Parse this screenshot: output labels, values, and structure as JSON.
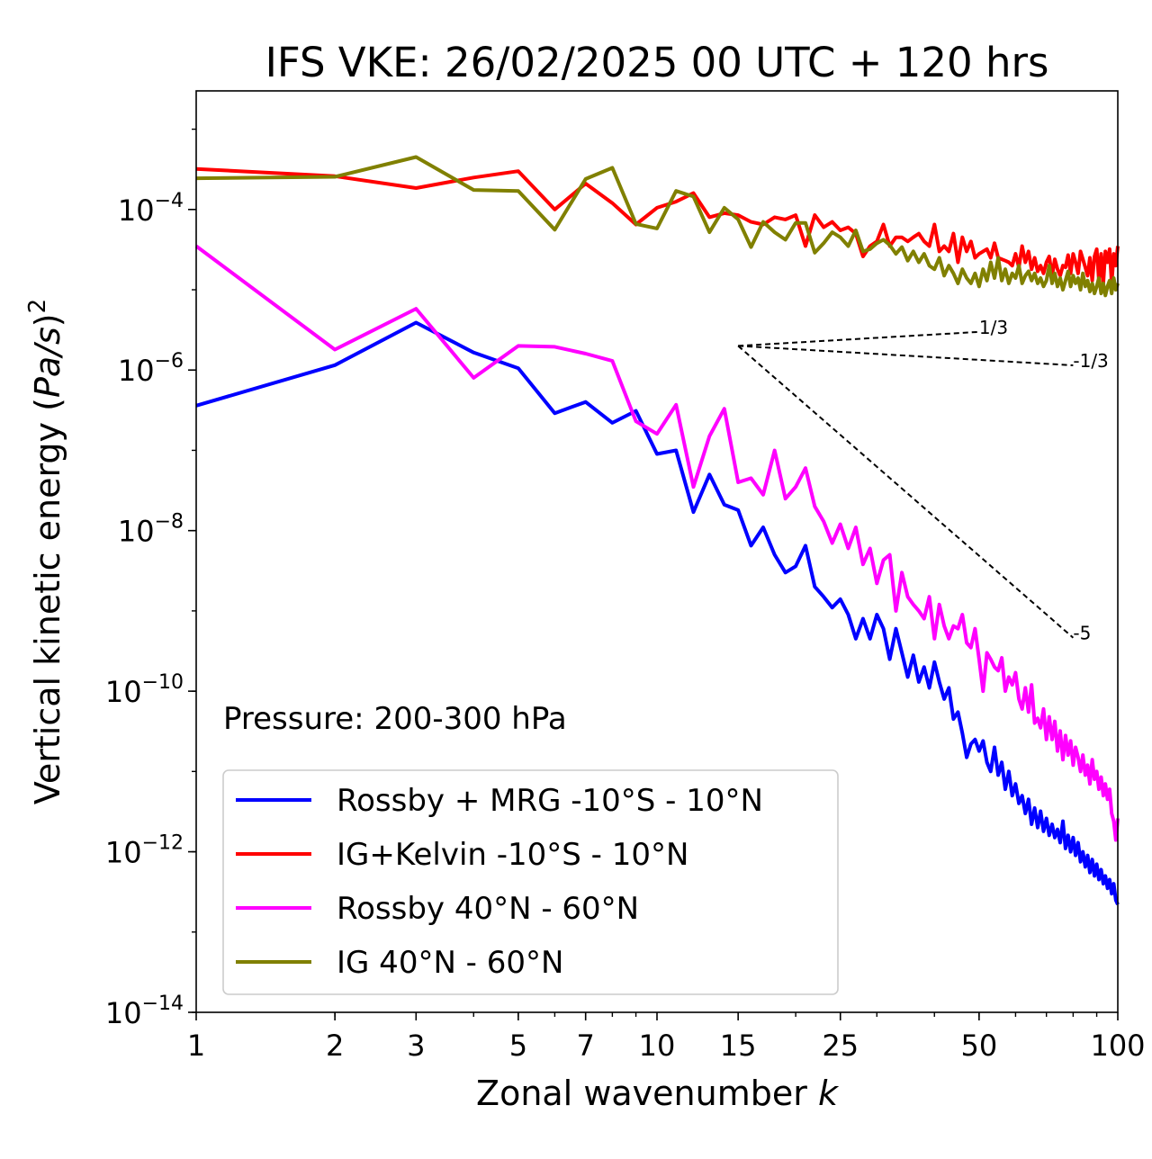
{
  "chart_data": {
    "type": "line",
    "title": "IFS VKE: 26/02/2025 00 UTC + 120 hrs",
    "xlabel_main": "Zonal wavenumber ",
    "xlabel_italic": "k",
    "ylabel_main": "Vertical kinetic energy (",
    "ylabel_italic": "Pa/s",
    "ylabel_close": ")",
    "ylabel_sup": "2",
    "x_scale": "log",
    "y_scale": "log",
    "xlim": [
      1,
      100
    ],
    "ylim": [
      1e-14,
      0.003
    ],
    "x_ticks": [
      1,
      2,
      3,
      5,
      7,
      10,
      15,
      25,
      50,
      100
    ],
    "x_tick_labels": [
      "1",
      "2",
      "3",
      "5",
      "7",
      "10",
      "15",
      "25",
      "50",
      "100"
    ],
    "y_ticks": [
      1e-14,
      1e-12,
      1e-10,
      1e-08,
      1e-06,
      0.0001
    ],
    "y_tick_labels": [
      {
        "base": "10",
        "exp": "−14"
      },
      {
        "base": "10",
        "exp": "−12"
      },
      {
        "base": "10",
        "exp": "−10"
      },
      {
        "base": "10",
        "exp": "−8"
      },
      {
        "base": "10",
        "exp": "−6"
      },
      {
        "base": "10",
        "exp": "−4"
      }
    ],
    "grid": false,
    "legend_position": "lower-left",
    "annotation": "Pressure: 200-300 hPa",
    "series": [
      {
        "name": "Rossby + MRG -10°S - 10°N",
        "color": "#0000ff",
        "x": [
          1,
          2,
          3,
          4,
          5,
          6,
          7,
          8,
          9,
          10,
          11,
          12,
          13,
          14,
          15,
          16,
          17,
          18,
          19,
          20,
          21,
          22,
          23,
          24,
          25,
          26,
          27,
          28,
          29,
          30,
          31,
          32,
          33,
          34,
          35,
          36,
          37,
          38,
          39,
          40,
          41,
          42,
          43,
          44,
          45,
          46,
          47,
          48,
          49,
          50,
          51,
          52,
          53,
          54,
          55,
          56,
          57,
          58,
          59,
          60,
          61,
          62,
          63,
          64,
          65,
          66,
          67,
          68,
          69,
          70,
          71,
          72,
          73,
          74,
          75,
          76,
          77,
          78,
          79,
          80,
          81,
          82,
          83,
          84,
          85,
          86,
          87,
          88,
          89,
          90,
          91,
          92,
          93,
          94,
          95,
          96,
          97,
          98,
          99,
          100
        ],
        "y": [
          3.6e-07,
          1.15e-06,
          3.9e-06,
          1.65e-06,
          1.05e-06,
          2.9e-07,
          4e-07,
          2.2e-07,
          3.1e-07,
          9e-08,
          1e-07,
          1.7e-08,
          5e-08,
          2.1e-08,
          1.8e-08,
          6.5e-09,
          1.1e-08,
          5e-09,
          3e-09,
          3.6e-09,
          6.5e-09,
          2e-09,
          1.5e-09,
          1.1e-09,
          1.4e-09,
          9e-10,
          4.5e-10,
          8e-10,
          4.5e-10,
          9e-10,
          6e-10,
          2.5e-10,
          6e-10,
          3e-10,
          1.5e-10,
          2.8e-10,
          1.3e-10,
          2e-10,
          1.1e-10,
          2.3e-10,
          1.3e-10,
          8e-11,
          1.1e-10,
          4.5e-11,
          5.5e-11,
          3e-11,
          1.5e-11,
          2.2e-11,
          2.5e-11,
          1.8e-11,
          2.4e-11,
          1.3e-11,
          1e-11,
          2e-11,
          9e-12,
          1.3e-11,
          6e-12,
          1e-11,
          5e-12,
          7e-12,
          4e-12,
          5e-12,
          3e-12,
          4.5e-12,
          2.2e-12,
          3.5e-12,
          2e-12,
          3.2e-12,
          1.8e-12,
          2.6e-12,
          1.6e-12,
          2.2e-12,
          1.5e-12,
          1.9e-12,
          1.3e-12,
          2.4e-12,
          1.1e-12,
          1.6e-12,
          1e-12,
          1.5e-12,
          9e-13,
          1.3e-12,
          7.5e-13,
          1e-12,
          6.5e-13,
          9e-13,
          5.5e-13,
          8e-13,
          5e-13,
          7e-13,
          4.5e-13,
          6e-13,
          4e-13,
          5e-13,
          3.5e-13,
          4.5e-13,
          3e-13,
          4e-13,
          2.5e-13,
          2.2e-13
        ]
      },
      {
        "name": "IG+Kelvin -10°S - 10°N",
        "color": "#ff0000",
        "x": [
          1,
          2,
          3,
          4,
          5,
          6,
          7,
          8,
          9,
          10,
          11,
          12,
          13,
          14,
          15,
          16,
          17,
          18,
          19,
          20,
          21,
          22,
          23,
          24,
          25,
          26,
          27,
          28,
          29,
          30,
          31,
          32,
          33,
          34,
          35,
          36,
          37,
          38,
          39,
          40,
          41,
          42,
          43,
          44,
          45,
          46,
          47,
          48,
          49,
          50,
          51,
          52,
          53,
          54,
          55,
          56,
          57,
          58,
          59,
          60,
          61,
          62,
          63,
          64,
          65,
          66,
          67,
          68,
          69,
          70,
          71,
          72,
          73,
          74,
          75,
          76,
          77,
          78,
          79,
          80,
          81,
          82,
          83,
          84,
          85,
          86,
          87,
          88,
          89,
          90,
          91,
          92,
          93,
          94,
          95,
          96,
          97,
          98,
          99,
          100
        ],
        "y": [
          0.00032,
          0.00026,
          0.000185,
          0.00025,
          0.0003,
          0.0001,
          0.00021,
          0.00012,
          6.5e-05,
          0.000105,
          0.000125,
          0.00016,
          8e-05,
          9e-05,
          8.5e-05,
          7e-05,
          6.5e-05,
          8e-05,
          7.5e-05,
          8.5e-05,
          3.5e-05,
          8.5e-05,
          6e-05,
          7e-05,
          5.5e-05,
          6e-05,
          5e-05,
          2.6e-05,
          3.5e-05,
          4e-05,
          6.5e-05,
          3.5e-05,
          4.5e-05,
          4.5e-05,
          4e-05,
          4.5e-05,
          5e-05,
          4e-05,
          3.5e-05,
          6.5e-05,
          3e-05,
          3.5e-05,
          3e-05,
          5e-05,
          2.2e-05,
          4.5e-05,
          3e-05,
          4e-05,
          2.5e-05,
          2.8e-05,
          3e-05,
          3.2e-05,
          2.5e-05,
          3.8e-05,
          2.5e-05,
          2.4e-05,
          2.3e-05,
          2.2e-05,
          2e-05,
          2.8e-05,
          1.9e-05,
          3.5e-05,
          2.2e-05,
          3e-05,
          1.8e-05,
          2.5e-05,
          1.7e-05,
          2e-05,
          1.6e-05,
          2.2e-05,
          2.6e-05,
          1.5e-05,
          2.4e-05,
          1.8e-05,
          1.5e-05,
          2e-05,
          1.9e-05,
          2.7e-05,
          1.6e-05,
          2.8e-05,
          2.2e-05,
          1.6e-05,
          3e-05,
          2.4e-05,
          1.9e-05,
          1.5e-05,
          2.5e-05,
          1.3e-05,
          2.6e-05,
          3.2e-05,
          1.3e-05,
          2.8e-05,
          1.2e-05,
          3e-05,
          2.2e-05,
          3.2e-05,
          1.2e-05,
          2.8e-05,
          2e-05,
          3.5e-05
        ]
      },
      {
        "name": "Rossby 40°N - 60°N",
        "color": "#ff00ff",
        "x": [
          1,
          2,
          3,
          4,
          5,
          6,
          7,
          8,
          9,
          10,
          11,
          12,
          13,
          14,
          15,
          16,
          17,
          18,
          19,
          20,
          21,
          22,
          23,
          24,
          25,
          26,
          27,
          28,
          29,
          30,
          31,
          32,
          33,
          34,
          35,
          36,
          37,
          38,
          39,
          40,
          41,
          42,
          43,
          44,
          45,
          46,
          47,
          48,
          49,
          50,
          51,
          52,
          53,
          54,
          55,
          56,
          57,
          58,
          59,
          60,
          61,
          62,
          63,
          64,
          65,
          66,
          67,
          68,
          69,
          70,
          71,
          72,
          73,
          74,
          75,
          76,
          77,
          78,
          79,
          80,
          81,
          82,
          83,
          84,
          85,
          86,
          87,
          88,
          89,
          90,
          91,
          92,
          93,
          94,
          95,
          96,
          97,
          98,
          99,
          100
        ],
        "y": [
          3.5e-05,
          1.8e-06,
          5.8e-06,
          8e-07,
          2e-06,
          1.95e-06,
          1.6e-06,
          1.3e-06,
          2.3e-07,
          1.6e-07,
          3.7e-07,
          3.5e-08,
          1.5e-07,
          3.3e-07,
          4e-08,
          4.5e-08,
          2.8e-08,
          1e-07,
          2.5e-08,
          3.5e-08,
          6e-08,
          2e-08,
          1.3e-08,
          7e-09,
          1.2e-08,
          6e-09,
          1.1e-08,
          3.8e-09,
          6e-09,
          2.2e-09,
          4.3e-09,
          5e-09,
          1e-09,
          3e-09,
          1.5e-09,
          1.2e-09,
          1e-09,
          8e-10,
          1.5e-09,
          4.5e-10,
          1.2e-09,
          6.5e-10,
          4.5e-10,
          6.5e-10,
          6e-10,
          9e-10,
          4e-10,
          3.5e-10,
          6e-10,
          2.5e-10,
          1e-10,
          3e-10,
          2.5e-10,
          2e-10,
          1.8e-10,
          2.6e-10,
          1e-10,
          1.5e-10,
          1.2e-10,
          1.7e-10,
          8e-11,
          6e-11,
          1.1e-10,
          5.5e-11,
          1.2e-10,
          4e-11,
          4.6e-11,
          3.5e-11,
          6e-11,
          2.5e-11,
          4.8e-11,
          2.5e-11,
          4.2e-11,
          1.8e-11,
          3.2e-11,
          1.4e-11,
          2.8e-11,
          1.6e-11,
          2.4e-11,
          1.2e-11,
          2e-11,
          1.5e-11,
          1e-11,
          1.6e-11,
          9e-12,
          1.2e-11,
          7e-12,
          1.4e-11,
          8e-12,
          1e-11,
          6e-12,
          8.5e-12,
          5e-12,
          7e-12,
          4.5e-12,
          6e-12,
          3e-12,
          2.4e-12,
          1.4e-12,
          2.6e-12
        ]
      },
      {
        "name": "IG 40°N - 60°N",
        "color": "#808000",
        "x": [
          1,
          2,
          3,
          4,
          5,
          6,
          7,
          8,
          9,
          10,
          11,
          12,
          13,
          14,
          15,
          16,
          17,
          18,
          19,
          20,
          21,
          22,
          23,
          24,
          25,
          26,
          27,
          28,
          29,
          30,
          31,
          32,
          33,
          34,
          35,
          36,
          37,
          38,
          39,
          40,
          41,
          42,
          43,
          44,
          45,
          46,
          47,
          48,
          49,
          50,
          51,
          52,
          53,
          54,
          55,
          56,
          57,
          58,
          59,
          60,
          61,
          62,
          63,
          64,
          65,
          66,
          67,
          68,
          69,
          70,
          71,
          72,
          73,
          74,
          75,
          76,
          77,
          78,
          79,
          80,
          81,
          82,
          83,
          84,
          85,
          86,
          87,
          88,
          89,
          90,
          91,
          92,
          93,
          94,
          95,
          96,
          97,
          98,
          99,
          100
        ],
        "y": [
          0.000245,
          0.000255,
          0.00045,
          0.000175,
          0.00017,
          5.6e-05,
          0.00024,
          0.00033,
          6.6e-05,
          5.8e-05,
          0.00017,
          0.000145,
          5.2e-05,
          0.000105,
          7.5e-05,
          3.4e-05,
          7e-05,
          5.2e-05,
          4.2e-05,
          6.8e-05,
          6.8e-05,
          2.9e-05,
          3.8e-05,
          5.2e-05,
          4.5e-05,
          3.5e-05,
          5.5e-05,
          3e-05,
          3.2e-05,
          3.8e-05,
          4.2e-05,
          3.6e-05,
          2.8e-05,
          3.4e-05,
          2.3e-05,
          3e-05,
          2.2e-05,
          2.8e-05,
          2e-05,
          1.8e-05,
          2.5e-05,
          1.5e-05,
          2e-05,
          1.6e-05,
          1.2e-05,
          1.8e-05,
          1.4e-05,
          1.2e-05,
          1.6e-05,
          1.1e-05,
          1.8e-05,
          1.3e-05,
          2.2e-05,
          1.4e-05,
          2.5e-05,
          1.3e-05,
          1.8e-05,
          1.2e-05,
          1.6e-05,
          1.4e-05,
          2e-05,
          1.2e-05,
          1.5e-05,
          1.7e-05,
          1.3e-05,
          1.6e-05,
          1.2e-05,
          1.4e-05,
          1.1e-05,
          1.3e-05,
          2e-05,
          1.2e-05,
          1.6e-05,
          1.1e-05,
          1.4e-05,
          1e-05,
          1.3e-05,
          1.7e-05,
          1.1e-05,
          1.5e-05,
          1.2e-05,
          1.4e-05,
          1e-05,
          1.6e-05,
          1.1e-05,
          1.3e-05,
          9.5e-06,
          1.2e-05,
          9e-06,
          1.1e-05,
          1.4e-05,
          9e-06,
          1.2e-05,
          8.5e-06,
          1.1e-05,
          1.3e-05,
          9e-06,
          1.4e-05,
          1e-05,
          1.2e-05
        ]
      }
    ],
    "reference_lines": [
      {
        "label": "1/3",
        "slope": 0.3333,
        "x0": 15,
        "y0": 2e-06,
        "x1": 50
      },
      {
        "label": "-1/3",
        "slope": -0.3333,
        "x0": 15,
        "y0": 2e-06,
        "x1": 80
      },
      {
        "label": "-5",
        "slope": -5,
        "x0": 15,
        "y0": 2e-06,
        "x1": 80
      }
    ]
  }
}
